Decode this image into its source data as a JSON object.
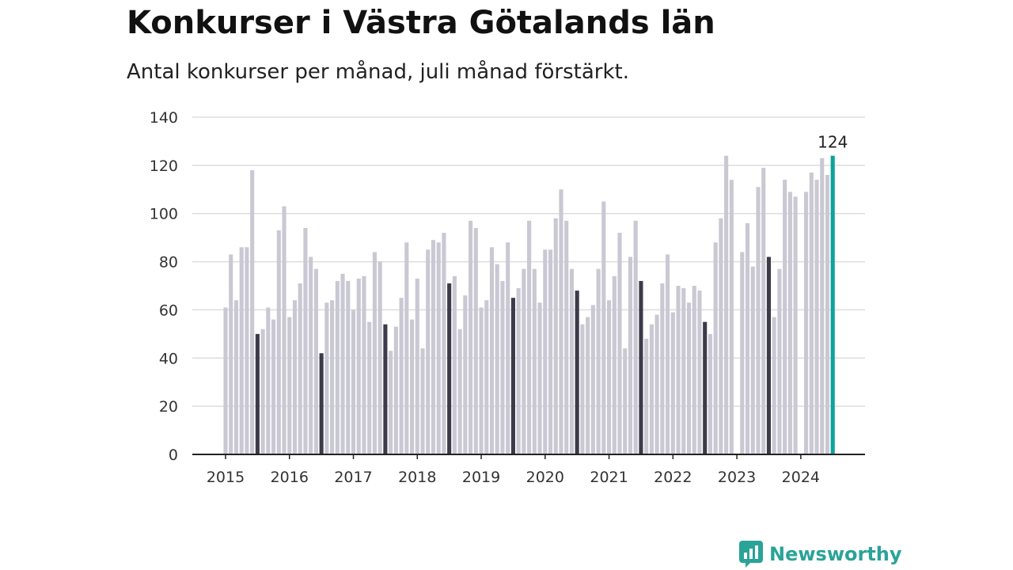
{
  "header": {
    "title": "Konkurser i Västra Götalands län",
    "subtitle": "Antal konkurser per månad, juli månad förstärkt."
  },
  "branding": {
    "name": "Newsworthy",
    "icon": "newsworthy-logo-icon",
    "color": "#2aa398"
  },
  "colors": {
    "bar": "#c9c8d3",
    "highlight": "#3b3b4a",
    "latest": "#0da39a",
    "grid": "#dddddd",
    "axis": "#222222",
    "text": "#333333"
  },
  "chart_data": {
    "type": "bar",
    "title": "Konkurser i Västra Götalands län",
    "subtitle": "Antal konkurser per månad, juli månad förstärkt.",
    "ylim": [
      0,
      140
    ],
    "yticks": [
      0,
      20,
      40,
      60,
      80,
      100,
      120,
      140
    ],
    "xtick_labels": [
      "2015",
      "2016",
      "2017",
      "2018",
      "2019",
      "2020",
      "2021",
      "2022",
      "2023",
      "2024"
    ],
    "grid": true,
    "highlight": "juli",
    "years": [
      {
        "year": "2015",
        "values": [
          61,
          83,
          64,
          86,
          86,
          118,
          50,
          52,
          61,
          56,
          93,
          103
        ]
      },
      {
        "year": "2016",
        "values": [
          57,
          64,
          71,
          94,
          82,
          77,
          42,
          63,
          64,
          72,
          75,
          72
        ]
      },
      {
        "year": "2017",
        "values": [
          60,
          73,
          74,
          55,
          84,
          80,
          54,
          43,
          53,
          65,
          88,
          56
        ]
      },
      {
        "year": "2018",
        "values": [
          73,
          44,
          85,
          89,
          88,
          92,
          71,
          74,
          52,
          66,
          97,
          94
        ]
      },
      {
        "year": "2019",
        "values": [
          61,
          64,
          86,
          79,
          72,
          88,
          65,
          69,
          77,
          97,
          77,
          63
        ]
      },
      {
        "year": "2020",
        "values": [
          85,
          85,
          98,
          110,
          97,
          77,
          68,
          54,
          57,
          62,
          77,
          105
        ]
      },
      {
        "year": "2021",
        "values": [
          64,
          74,
          92,
          44,
          82,
          97,
          72,
          48,
          54,
          58,
          71,
          83
        ]
      },
      {
        "year": "2022",
        "values": [
          59,
          70,
          69,
          63,
          70,
          68,
          55,
          50,
          88,
          98,
          124,
          114
        ]
      },
      {
        "year": "2023",
        "values": [
          null,
          84,
          96,
          78,
          111,
          119,
          82,
          57,
          77,
          114,
          109,
          107
        ]
      },
      {
        "year": "2024",
        "values": [
          null,
          109,
          117,
          114,
          123,
          116,
          124
        ]
      }
    ],
    "annotation": {
      "label": "124",
      "value": 124
    }
  }
}
